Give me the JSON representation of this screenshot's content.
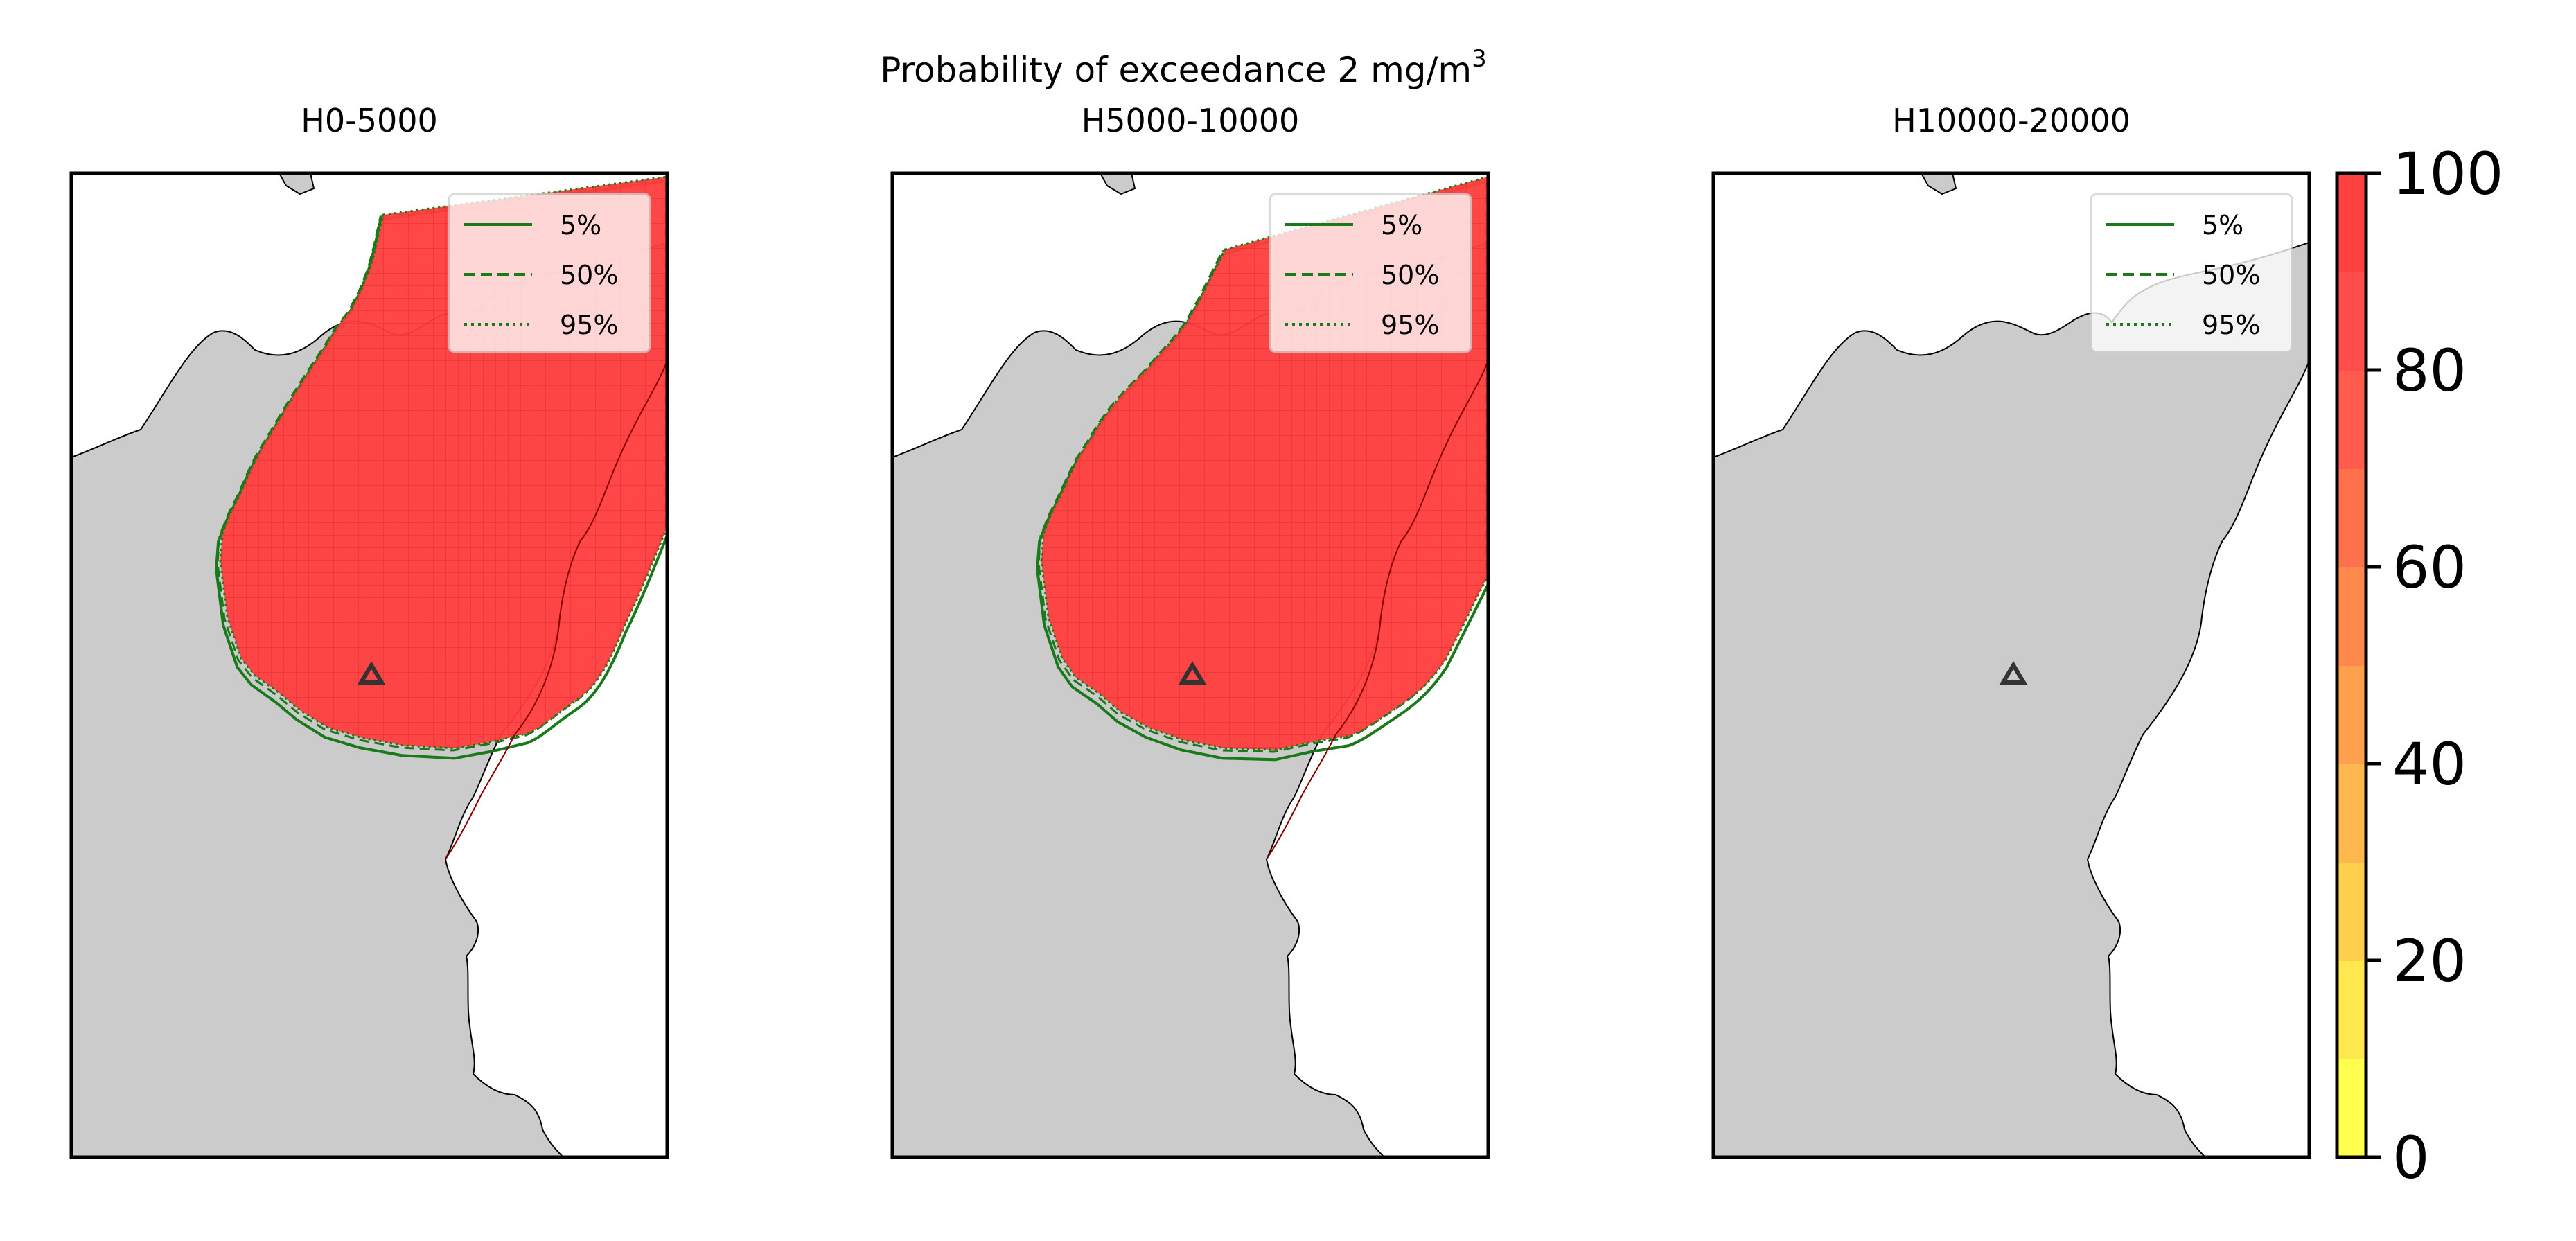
{
  "figure": {
    "suptitle_main": "Probability of exceedance 2 mg/m",
    "suptitle_sup": "3"
  },
  "panels": [
    {
      "title": "H0-5000",
      "legend": [
        "5%",
        "50%",
        "95%"
      ],
      "plume": true,
      "plume_shape": "h0"
    },
    {
      "title": "H5000-10000",
      "legend": [
        "5%",
        "50%",
        "95%"
      ],
      "plume": true,
      "plume_shape": "h5"
    },
    {
      "title": "H10000-20000",
      "legend": [
        "5%",
        "50%",
        "95%"
      ],
      "plume": false
    }
  ],
  "colorbar": {
    "ticks": [
      "0",
      "20",
      "40",
      "60",
      "80",
      "100"
    ],
    "colors": [
      "#ffff4d",
      "#ffe84d",
      "#ffd04d",
      "#ffb84d",
      "#ffa04d",
      "#ff884d",
      "#ff704d",
      "#ff5c4d",
      "#ff4d4d",
      "#ff4040"
    ]
  },
  "chart_data": {
    "type": "heatmap",
    "title": "Probability of exceedance 2 mg/m3",
    "panels": [
      "H0-5000",
      "H5000-10000",
      "H10000-20000"
    ],
    "colorbar_range": [
      0,
      100
    ],
    "colorbar_ticks": [
      0,
      20,
      40,
      60,
      80,
      100
    ],
    "contour_levels": [
      "5%",
      "50%",
      "95%"
    ],
    "notes": [
      {
        "panel": "H0-5000",
        "max_probability": 100
      },
      {
        "panel": "H5000-10000",
        "max_probability": 100
      },
      {
        "panel": "H10000-20000",
        "max_probability": 0
      }
    ]
  }
}
